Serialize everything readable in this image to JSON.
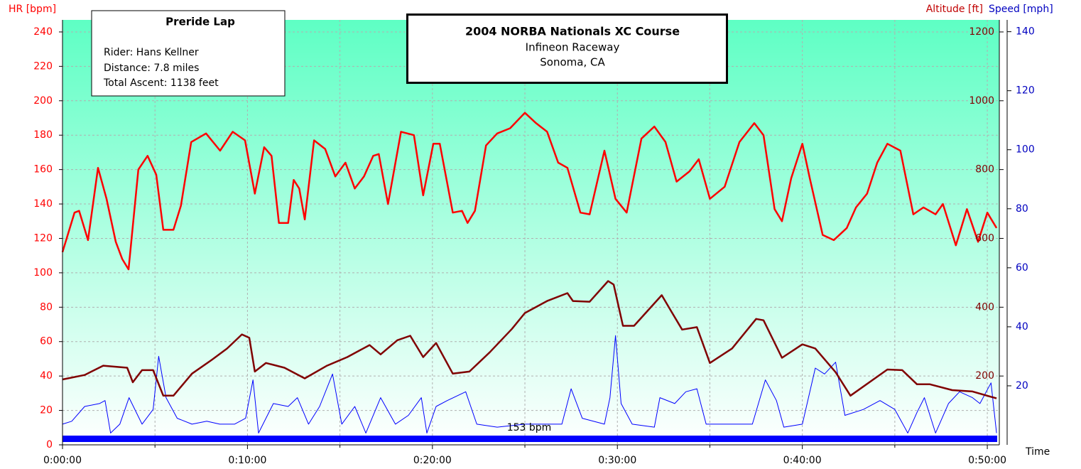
{
  "chart_data": {
    "type": "line",
    "title": "2004 NORBA Nationals XC Course",
    "subtitle": [
      "Infineon Raceway",
      "Sonoma, CA"
    ],
    "info_box": {
      "title": "Preride Lap",
      "lines": [
        "Rider: Hans Kellner",
        "Distance: 7.8 miles",
        "Total Ascent: 1138 feet"
      ]
    },
    "x_label": "Time",
    "y_label": "HR [bpm]",
    "y2_label": "Altitude [ft]",
    "y3_label": "Speed [mph]",
    "annotation": "153 bpm",
    "xlim": [
      0,
      50.65
    ],
    "xticks": [
      {
        "value": 0,
        "label": "0:00:00"
      },
      {
        "value": 10,
        "label": "0:10:00"
      },
      {
        "value": 20,
        "label": "0:20:00"
      },
      {
        "value": 30,
        "label": "0:30:00"
      },
      {
        "value": 40,
        "label": "0:40:00"
      },
      {
        "value": 50,
        "label": "0:50:00"
      }
    ],
    "xminor_ticks": [
      5,
      15,
      25,
      35,
      45
    ],
    "ylim": [
      0,
      247
    ],
    "yticks": [
      0,
      20,
      40,
      60,
      80,
      100,
      120,
      140,
      160,
      180,
      200,
      220,
      240
    ],
    "y2lim": [
      0,
      1235
    ],
    "y2ticks": [
      200,
      400,
      600,
      800,
      1000,
      1200
    ],
    "y3lim": [
      0,
      144
    ],
    "y3ticks": [
      20,
      40,
      60,
      80,
      100,
      120,
      140
    ],
    "grid": true,
    "series": [
      {
        "name": "Speed",
        "color": "#0000ff",
        "axis": "y3",
        "x": [
          0,
          0.5,
          1.2,
          2.0,
          2.3,
          2.6,
          3.1,
          3.6,
          4.3,
          4.9,
          5.2,
          5.6,
          6.2,
          7.0,
          7.8,
          8.5,
          9.3,
          9.9,
          10.3,
          10.6,
          11.4,
          12.2,
          12.7,
          13.3,
          13.9,
          14.6,
          15.1,
          15.8,
          16.4,
          17.2,
          18.0,
          18.7,
          19.4,
          19.7,
          20.2,
          20.8,
          21.8,
          22.4,
          23.5,
          25.0,
          26.2,
          27.0,
          27.5,
          28.1,
          29.3,
          29.6,
          29.9,
          30.2,
          30.8,
          32.0,
          32.3,
          33.1,
          33.7,
          34.3,
          34.8,
          36.2,
          37.3,
          38.0,
          38.6,
          39.0,
          40.0,
          40.7,
          41.2,
          41.8,
          42.3,
          43.3,
          44.2,
          45.0,
          45.7,
          46.2,
          46.6,
          47.2,
          47.9,
          48.5,
          49.2,
          49.6,
          50.2,
          50.5
        ],
        "values": [
          7,
          8,
          13,
          14,
          15,
          4,
          7,
          16,
          7,
          12,
          30,
          16,
          9,
          7,
          8,
          7,
          7,
          9,
          22,
          4,
          14,
          13,
          16,
          7,
          13,
          24,
          7,
          13,
          4,
          16,
          7,
          10,
          16,
          4,
          13,
          15,
          18,
          7,
          6,
          7,
          7,
          7,
          19,
          9,
          7,
          16,
          37,
          14,
          7,
          6,
          16,
          14,
          18,
          19,
          7,
          7,
          7,
          22,
          15,
          6,
          7,
          26,
          24,
          28,
          10,
          12,
          15,
          12,
          4,
          11,
          16,
          4,
          14,
          18,
          16,
          14,
          21,
          4
        ]
      },
      {
        "name": "Altitude",
        "color": "#800000",
        "axis": "y2",
        "x": [
          0,
          1.2,
          2.2,
          3.5,
          3.8,
          4.3,
          4.9,
          5.45,
          6.0,
          7.0,
          8.1,
          8.9,
          9.7,
          10.1,
          10.4,
          11.0,
          12.0,
          13.1,
          14.3,
          15.4,
          16.6,
          17.2,
          18.1,
          18.8,
          19.5,
          20.2,
          21.1,
          22.0,
          23.1,
          24.3,
          25.0,
          26.2,
          27.3,
          27.6,
          28.5,
          29.5,
          29.8,
          30.3,
          30.9,
          32.4,
          32.9,
          33.5,
          34.3,
          35.0,
          36.2,
          37.5,
          37.9,
          38.9,
          40.0,
          40.7,
          41.8,
          42.6,
          44.6,
          45.4,
          46.2,
          46.9,
          48.1,
          49.2,
          50.5
        ],
        "values": [
          190,
          203,
          230,
          224,
          182,
          217,
          217,
          143,
          143,
          207,
          248,
          280,
          321,
          311,
          213,
          238,
          224,
          193,
          230,
          255,
          290,
          263,
          304,
          317,
          255,
          296,
          207,
          213,
          269,
          337,
          383,
          418,
          441,
          418,
          416,
          476,
          466,
          346,
          346,
          435,
          389,
          335,
          342,
          238,
          280,
          366,
          362,
          253,
          292,
          280,
          211,
          143,
          219,
          217,
          176,
          176,
          159,
          155,
          135
        ]
      },
      {
        "name": "HR",
        "color": "#ff0000",
        "axis": "y",
        "x": [
          0,
          0.65,
          0.9,
          1.38,
          1.92,
          2.38,
          2.88,
          3.23,
          3.57,
          4.1,
          4.6,
          5.07,
          5.45,
          6.0,
          6.4,
          6.96,
          7.76,
          8.52,
          9.2,
          9.87,
          10.4,
          10.9,
          11.3,
          11.7,
          12.2,
          12.5,
          12.8,
          13.1,
          13.6,
          14.2,
          14.75,
          15.3,
          15.8,
          16.3,
          16.8,
          17.1,
          17.6,
          18.3,
          19.0,
          19.5,
          20.05,
          20.4,
          21.1,
          21.6,
          21.9,
          22.3,
          22.9,
          23.5,
          24.2,
          25.0,
          25.6,
          26.2,
          26.8,
          27.3,
          28.0,
          28.5,
          29.3,
          29.9,
          30.5,
          31.3,
          32.0,
          32.6,
          33.2,
          33.9,
          34.4,
          35.0,
          35.8,
          36.6,
          37.4,
          37.9,
          38.5,
          38.9,
          39.4,
          40.0,
          40.4,
          41.1,
          41.7,
          42.4,
          42.9,
          43.5,
          44.05,
          44.6,
          45.3,
          46.0,
          46.55,
          47.2,
          47.6,
          48.3,
          48.9,
          49.5,
          50.0,
          50.5
        ],
        "values": [
          112,
          135,
          136,
          119,
          161,
          143,
          118,
          108,
          102,
          160,
          168,
          157,
          125,
          125,
          139,
          176,
          181,
          171,
          182,
          177,
          146,
          173,
          168,
          129,
          129,
          154,
          149,
          131,
          177,
          172,
          156,
          164,
          149,
          156,
          168,
          169,
          140,
          182,
          180,
          145,
          175,
          175,
          135,
          136,
          129,
          136,
          174,
          181,
          184,
          193,
          187,
          182,
          164,
          161,
          135,
          134,
          171,
          143,
          135,
          178,
          185,
          176,
          153,
          159,
          166,
          143,
          150,
          176,
          187,
          180,
          137,
          130,
          155,
          175,
          155,
          122,
          119,
          126,
          138,
          146,
          164,
          175,
          171,
          134,
          138,
          134,
          140,
          116,
          137,
          118,
          135,
          126
        ]
      }
    ]
  }
}
